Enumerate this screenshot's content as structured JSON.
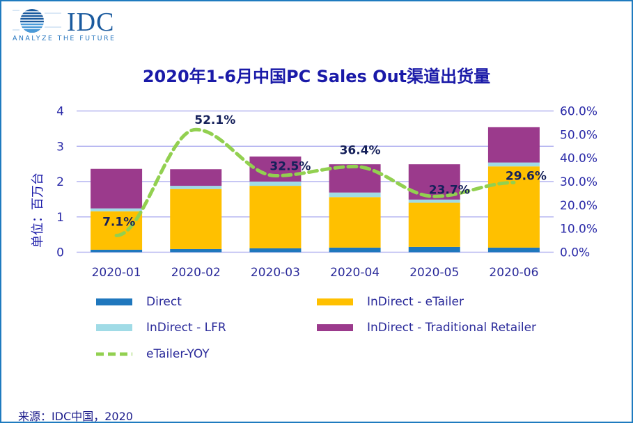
{
  "logo": {
    "name": "IDC",
    "tagline": "ANALYZE THE FUTURE"
  },
  "title": "2020年1-6月中国PC Sales Out渠道出货量",
  "source": "来源：IDC中国，2020",
  "chart_data": {
    "type": "bar",
    "stacked": true,
    "title": "2020年1-6月中国PC Sales Out渠道出货量",
    "ylabel": "单位：百万台",
    "ylim": [
      0,
      4
    ],
    "yticks": [
      "0",
      "1",
      "2",
      "3",
      "4"
    ],
    "y2lim": [
      0,
      60
    ],
    "y2ticks": [
      "0.0%",
      "10.0%",
      "20.0%",
      "30.0%",
      "40.0%",
      "50.0%",
      "60.0%"
    ],
    "grid": true,
    "legend_placement": "bottom",
    "categories": [
      "2020-01",
      "2020-02",
      "2020-03",
      "2020-04",
      "2020-05",
      "2020-06"
    ],
    "series": [
      {
        "name": "Direct",
        "color": "#1f77bd",
        "values": [
          0.07,
          0.09,
          0.11,
          0.13,
          0.15,
          0.13
        ]
      },
      {
        "name": "InDirect - eTailer",
        "color": "#ffc000",
        "values": [
          1.09,
          1.7,
          1.77,
          1.43,
          1.25,
          2.3
        ]
      },
      {
        "name": "InDirect - LFR",
        "color": "#a0dbe6",
        "values": [
          0.08,
          0.09,
          0.12,
          0.13,
          0.09,
          0.11
        ]
      },
      {
        "name": "InDirect - Traditional Retailer",
        "color": "#9b3a8c",
        "values": [
          1.12,
          0.47,
          0.71,
          0.8,
          1.0,
          1.0
        ]
      }
    ],
    "line": {
      "name": "eTailer-YOY",
      "color": "#92d050",
      "axis": "right",
      "style": "dashed",
      "values": [
        7.1,
        52.1,
        32.5,
        36.4,
        23.7,
        29.6
      ],
      "labels": [
        "7.1%",
        "52.1%",
        "32.5%",
        "36.4%",
        "23.7%",
        "29.6%"
      ]
    }
  }
}
